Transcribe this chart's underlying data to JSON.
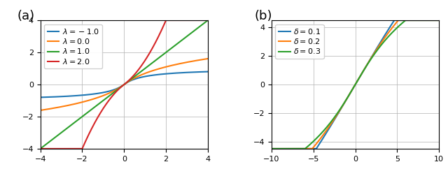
{
  "panel_a": {
    "label": "(a)",
    "lambdas": [
      -1.0,
      0.0,
      1.0,
      2.0
    ],
    "lambda_labels": [
      "$\\lambda = -1.0$",
      "$\\lambda = 0.0$",
      "$\\lambda = 1.0$",
      "$\\lambda = 2.0$"
    ],
    "colors": [
      "#1f77b4",
      "#ff7f0e",
      "#2ca02c",
      "#d62728"
    ],
    "xlim": [
      -4,
      4
    ],
    "ylim": [
      -4,
      4
    ],
    "xticks": [
      -4,
      -2,
      0,
      2,
      4
    ],
    "yticks": [
      -4,
      -2,
      0,
      2,
      4
    ]
  },
  "panel_b": {
    "label": "(b)",
    "deltas": [
      0.1,
      0.2,
      0.3
    ],
    "delta_labels": [
      "$\\delta = 0.1$",
      "$\\delta = 0.2$",
      "$\\delta = 0.3$"
    ],
    "colors": [
      "#1f77b4",
      "#ff7f0e",
      "#2ca02c"
    ],
    "xlim": [
      -10,
      10
    ],
    "ylim": [
      -4.5,
      4.5
    ],
    "xticks": [
      -10,
      -5,
      0,
      5,
      10
    ],
    "yticks": [
      -4,
      -2,
      0,
      2,
      4
    ]
  },
  "background_color": "#ffffff",
  "grid_color": "#b0b0b0",
  "linewidth": 1.5
}
